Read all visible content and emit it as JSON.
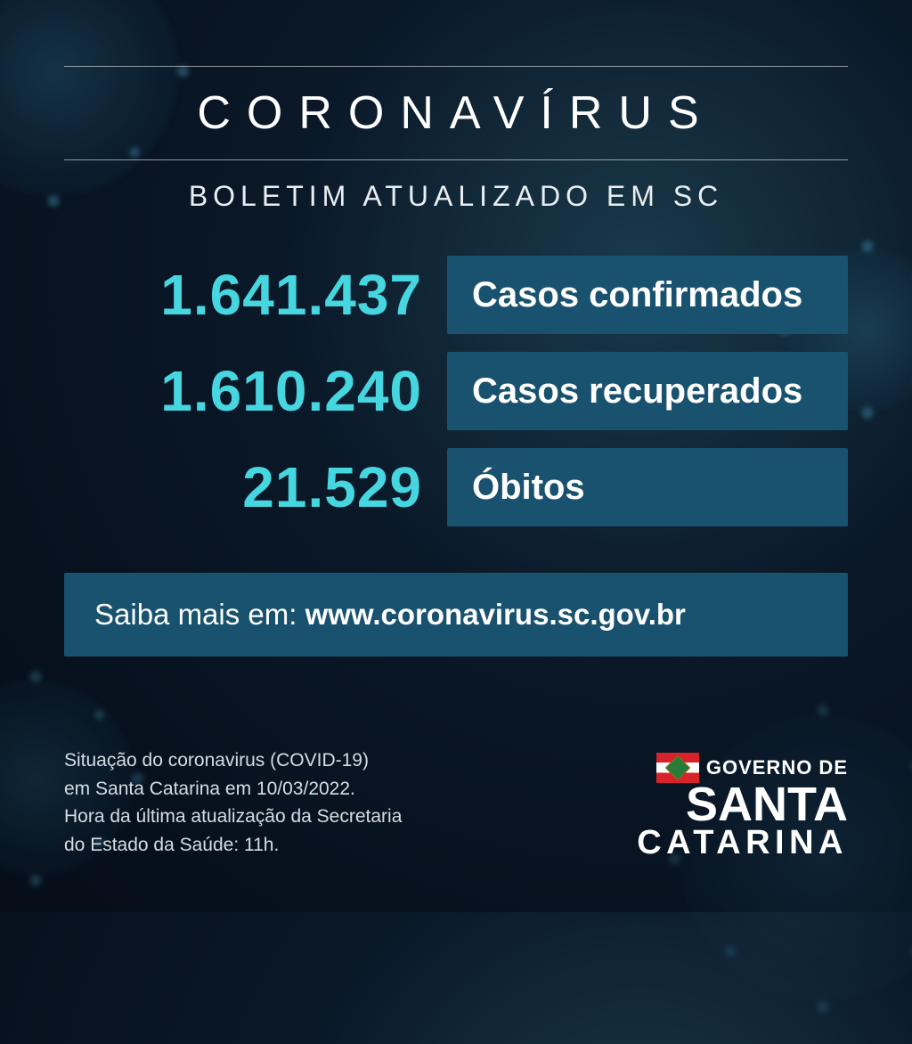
{
  "colors": {
    "accent_number": "#46d6e0",
    "label_bg": "#19526e",
    "info_bg": "#19526e",
    "text_white": "#ffffff"
  },
  "header": {
    "title": "CORONAVÍRUS",
    "subtitle": "BOLETIM ATUALIZADO EM SC"
  },
  "stats": [
    {
      "value": "1.641.437",
      "label": "Casos confirmados"
    },
    {
      "value": "1.610.240",
      "label": "Casos recuperados"
    },
    {
      "value": "21.529",
      "label": "Óbitos"
    }
  ],
  "info": {
    "prefix": "Saiba mais em: ",
    "url": "www.coronavirus.sc.gov.br"
  },
  "footer": {
    "line1": "Situação do coronavirus (COVID-19)",
    "line2": "em Santa Catarina em 10/03/2022.",
    "line3": "Hora da última atualização da Secretaria",
    "line4": "do Estado da Saúde: 11h."
  },
  "logo": {
    "line1": "GOVERNO DE",
    "line2": "SANTA",
    "line3": "CATARINA"
  }
}
